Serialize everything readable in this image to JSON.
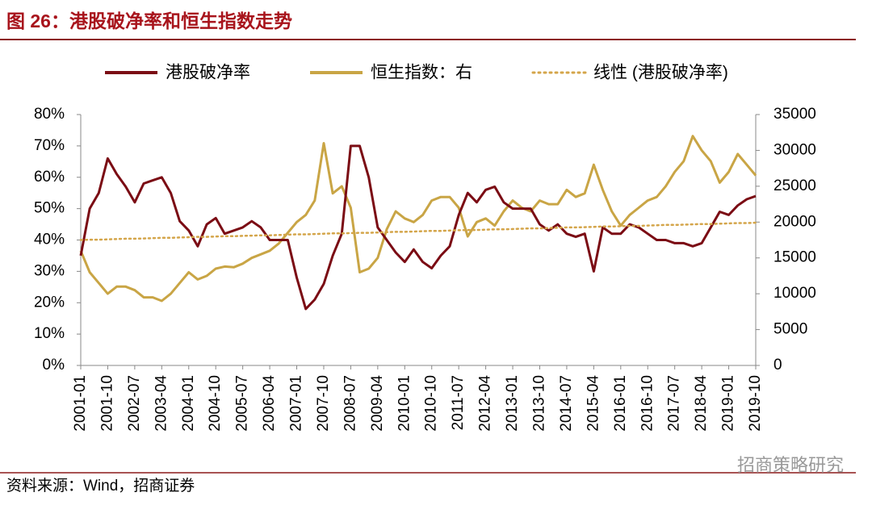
{
  "title": "图 26：港股破净率和恒生指数走势",
  "source": "资料来源：Wind，招商证券",
  "watermark": "招商策略研究",
  "chart_data": {
    "type": "line",
    "x": [
      "2001-01",
      null,
      null,
      "2001-10",
      null,
      null,
      "2002-07",
      null,
      null,
      "2003-04",
      null,
      null,
      "2004-01",
      null,
      null,
      "2004-10",
      null,
      null,
      "2005-07",
      null,
      null,
      "2006-04",
      null,
      null,
      "2007-01",
      null,
      null,
      "2007-10",
      null,
      null,
      "2008-07",
      null,
      null,
      "2009-04",
      null,
      null,
      "2010-01",
      null,
      null,
      "2010-10",
      null,
      null,
      "2011-07",
      null,
      null,
      "2012-04",
      null,
      null,
      "2013-01",
      null,
      null,
      "2013-10",
      null,
      null,
      "2014-07",
      null,
      null,
      "2015-04",
      null,
      null,
      "2016-01",
      null,
      null,
      "2016-10",
      null,
      null,
      "2017-07",
      null,
      null,
      "2018-04",
      null,
      null,
      "2019-01",
      null,
      null,
      "2019-10"
    ],
    "series": [
      {
        "name": "港股破净率",
        "color": "#7b0c14",
        "style": "solid",
        "axis": "y",
        "values": [
          35,
          50,
          55,
          66,
          61,
          57,
          52,
          58,
          59,
          60,
          55,
          46,
          43,
          38,
          45,
          47,
          42,
          43,
          44,
          46,
          44,
          40,
          40,
          40,
          28,
          18,
          21,
          26,
          35,
          42,
          70,
          70,
          60,
          44,
          40,
          36,
          33,
          37,
          33,
          31,
          35,
          38,
          48,
          55,
          52,
          56,
          57,
          52,
          50,
          50,
          50,
          45,
          43,
          45,
          42,
          41,
          42,
          30,
          44,
          42,
          42,
          45,
          44,
          42,
          40,
          40,
          39,
          39,
          38,
          39,
          44,
          49,
          48,
          51,
          53,
          54
        ]
      },
      {
        "name": "恒生指数：右",
        "color": "#c9a545",
        "style": "solid",
        "axis": "y2",
        "values": [
          16000,
          13000,
          11500,
          10000,
          11000,
          11000,
          10500,
          9500,
          9500,
          9000,
          10000,
          11500,
          13000,
          12000,
          12500,
          13500,
          13800,
          13700,
          14200,
          15000,
          15500,
          16000,
          17000,
          18500,
          20000,
          21000,
          23000,
          31000,
          24000,
          25000,
          22000,
          13000,
          13500,
          15000,
          19000,
          21500,
          20500,
          20000,
          21000,
          23000,
          23500,
          23500,
          22000,
          18000,
          20000,
          20500,
          19500,
          21500,
          23000,
          22000,
          21500,
          23000,
          22500,
          22500,
          24500,
          23500,
          24000,
          28000,
          24500,
          21500,
          19500,
          21000,
          22000,
          23000,
          23500,
          25000,
          27000,
          28500,
          32000,
          30000,
          28500,
          25500,
          27000,
          29500,
          28000,
          26500
        ]
      },
      {
        "name": "线性 (港股破净率)",
        "color": "#d4a54a",
        "style": "dotted",
        "axis": "y",
        "values": [
          40.0,
          40.1,
          40.1,
          40.2,
          40.3,
          40.4,
          40.4,
          40.5,
          40.6,
          40.7,
          40.7,
          40.8,
          40.9,
          41.0,
          41.0,
          41.1,
          41.2,
          41.2,
          41.3,
          41.4,
          41.5,
          41.5,
          41.6,
          41.7,
          41.8,
          41.8,
          41.9,
          42.0,
          42.1,
          42.1,
          42.2,
          42.3,
          42.3,
          42.4,
          42.5,
          42.6,
          42.6,
          42.7,
          42.8,
          42.9,
          42.9,
          43.0,
          43.1,
          43.2,
          43.2,
          43.3,
          43.4,
          43.4,
          43.5,
          43.6,
          43.7,
          43.7,
          43.8,
          43.9,
          44.0,
          44.0,
          44.1,
          44.2,
          44.3,
          44.3,
          44.4,
          44.5,
          44.5,
          44.6,
          44.7,
          44.8,
          44.8,
          44.9,
          45.0,
          45.1,
          45.1,
          45.2,
          45.3,
          45.4,
          45.4,
          45.5
        ]
      }
    ],
    "ylim": [
      0,
      80
    ],
    "yticks": [
      {
        "value": 0,
        "label": "0%"
      },
      {
        "value": 10,
        "label": "10%"
      },
      {
        "value": 20,
        "label": "20%"
      },
      {
        "value": 30,
        "label": "30%"
      },
      {
        "value": 40,
        "label": "40%"
      },
      {
        "value": 50,
        "label": "50%"
      },
      {
        "value": 60,
        "label": "60%"
      },
      {
        "value": 70,
        "label": "70%"
      },
      {
        "value": 80,
        "label": "80%"
      }
    ],
    "y2lim": [
      0,
      35000
    ],
    "y2ticks": [
      0,
      5000,
      10000,
      15000,
      20000,
      25000,
      30000,
      35000
    ],
    "grid": false
  }
}
